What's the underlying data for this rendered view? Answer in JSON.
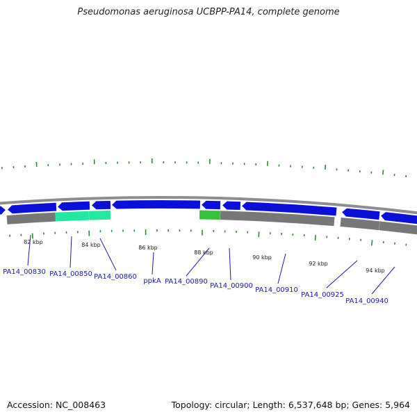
{
  "title": "Pseudomonas aeruginosa UCBPP-PA14, complete genome",
  "footer": {
    "accession": "Accession: NC_008463",
    "summary": "Topology: circular; Length: 6,537,648 bp; Genes: 5,964"
  },
  "colors": {
    "gene_forward": "#0a10d8",
    "gene_reverse": "#777777",
    "highlight_teal": "#22e8a2",
    "highlight_green": "#36c236",
    "tick": "#2b8a2b",
    "backbone": "#8d8d8d",
    "label": "#1a1aa6"
  },
  "kbp_labels": [
    "82 kbp",
    "84 kbp",
    "86 kbp",
    "88 kbp",
    "90 kbp",
    "92 kbp",
    "94 kbp"
  ],
  "gene_labels": [
    "PA14_00830",
    "PA14_00850",
    "PA14_00860",
    "ppkA",
    "PA14_00890",
    "PA14_00900",
    "PA14_00910",
    "PA14_00925",
    "PA14_00940"
  ]
}
